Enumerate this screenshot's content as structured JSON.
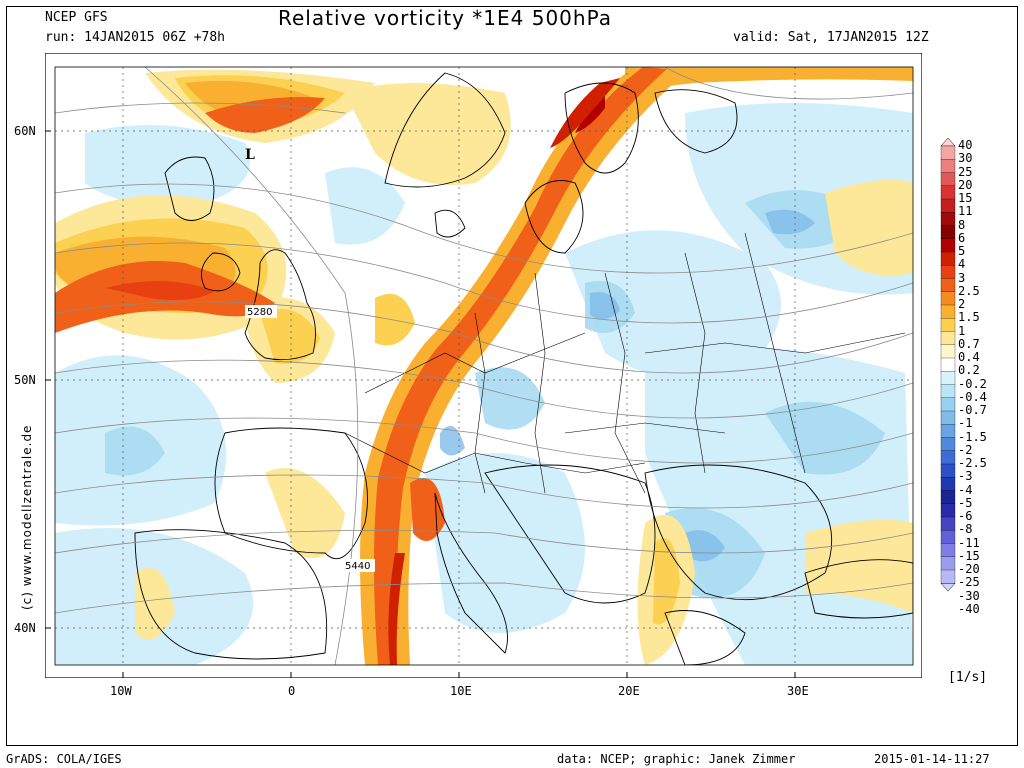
{
  "header": {
    "model": "NCEP GFS",
    "run": "run: 14JAN2015 06Z +78h",
    "title": "Relative vorticity *1E4 500hPa",
    "valid": "valid: Sat, 17JAN2015 12Z"
  },
  "axes": {
    "lat_labels": [
      "60N",
      "50N",
      "40N"
    ],
    "lon_labels": [
      "10W",
      "0",
      "10E",
      "20E",
      "30E"
    ]
  },
  "contour_labels": [
    "5280",
    "5440"
  ],
  "low_marker": "L",
  "watermark": "(c) www.modellzentrale.de",
  "colorbar": {
    "unit": "[1/s]",
    "levels": [
      "40",
      "30",
      "25",
      "20",
      "15",
      "11",
      "8",
      "6",
      "5",
      "4",
      "3",
      "2.5",
      "2",
      "1.5",
      "1",
      "0.7",
      "0.4",
      "0.2",
      "-0.2",
      "-0.4",
      "-0.7",
      "-1",
      "-1.5",
      "-2",
      "-2.5",
      "-3",
      "-4",
      "-5",
      "-6",
      "-8",
      "-11",
      "-15",
      "-20",
      "-25",
      "-30",
      "-40"
    ],
    "colors": [
      "#fcd6d6",
      "#f3a6a6",
      "#ec8080",
      "#e25858",
      "#d83434",
      "#c41e1e",
      "#a00a0a",
      "#880000",
      "#b00000",
      "#d02000",
      "#e84010",
      "#f06018",
      "#f58a20",
      "#f9b030",
      "#fcd050",
      "#fde89a",
      "#fff6cc",
      "#ffffff",
      "#d8f4fa",
      "#b8e6f4",
      "#98d0ee",
      "#80bce8",
      "#6aa4e2",
      "#5088dc",
      "#3c6cd4",
      "#2c50c8",
      "#2038b0",
      "#1a2494",
      "#2a2aa8",
      "#4444c4",
      "#6060d8",
      "#7e7ee6",
      "#9c9cee",
      "#b8b8f4",
      "#d4d4fa"
    ],
    "highlight": "#e36a1c"
  },
  "footer": {
    "software": "GrADS: COLA/IGES",
    "credits": "data: NCEP; graphic: Janek Zimmer",
    "timestamp": "2015-01-14-11:27"
  }
}
